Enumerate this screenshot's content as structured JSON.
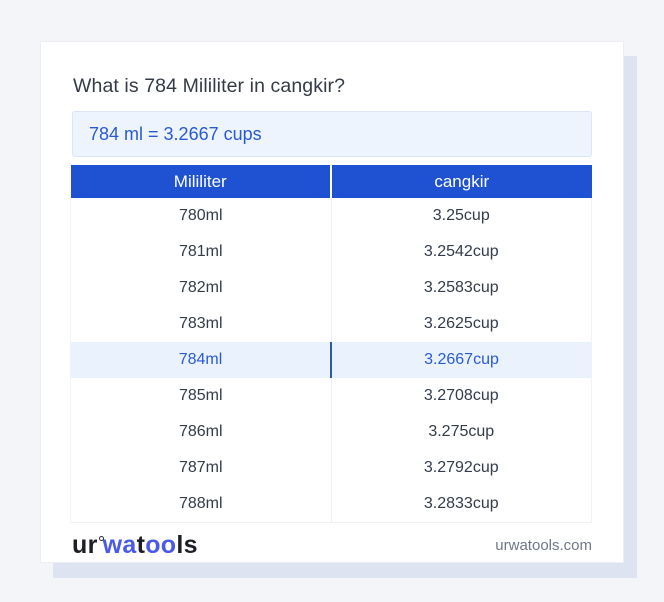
{
  "page": {
    "background_color": "#f3f5f9"
  },
  "card": {
    "title": "What is 784 Mililiter in cangkir?",
    "answer_text": "784 ml = 3.2667 cups"
  },
  "table": {
    "headers": [
      "Mililiter",
      "cangkir"
    ],
    "rows": [
      [
        "780ml",
        "3.25cup"
      ],
      [
        "781ml",
        "3.2542cup"
      ],
      [
        "782ml",
        "3.2583cup"
      ],
      [
        "783ml",
        "3.2625cup"
      ],
      [
        "784ml",
        "3.2667cup"
      ],
      [
        "785ml",
        "3.2708cup"
      ],
      [
        "786ml",
        "3.275cup"
      ],
      [
        "787ml",
        "3.2792cup"
      ],
      [
        "788ml",
        "3.2833cup"
      ]
    ],
    "highlight_row_index": 4
  },
  "footer": {
    "logo_parts": [
      "ur",
      "wa",
      "t",
      "oo",
      "ls"
    ],
    "domain": "urwatools.com"
  },
  "colors": {
    "header_bg": "#1f51d3",
    "accent_text": "#2a5ad3",
    "answer_bg": "#edf4fd",
    "highlight_bg": "#e9f2fd",
    "highlight_divider": "#2d5ca8",
    "shadow": "#dde3f0",
    "logo_blue": "#4a5ae8",
    "page_bg": "#f3f5f9"
  }
}
